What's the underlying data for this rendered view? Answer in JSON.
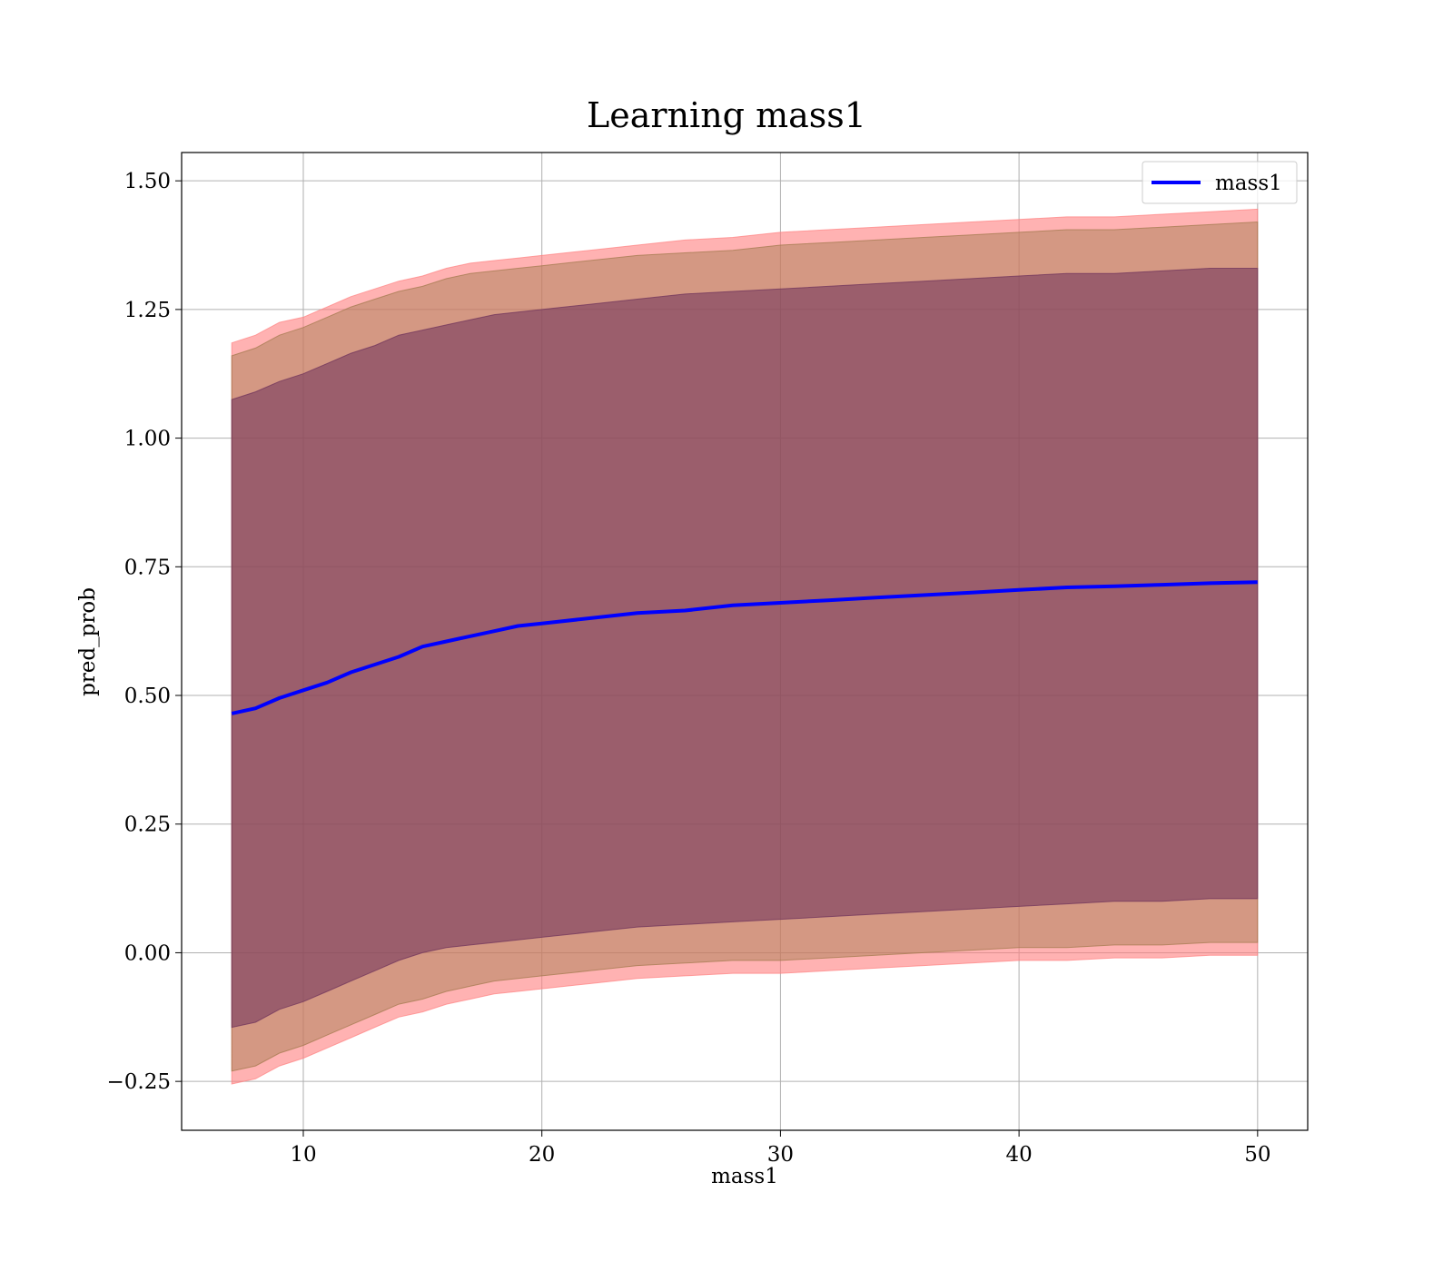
{
  "chart_data": {
    "type": "area",
    "title": "Learning mass1",
    "xlabel": "mass1",
    "ylabel": "pred_prob",
    "xlim": [
      4.9,
      52.1
    ],
    "ylim": [
      -0.345,
      1.555
    ],
    "xticks": [
      10,
      20,
      30,
      40,
      50
    ],
    "xtick_labels": [
      "10",
      "20",
      "30",
      "40",
      "50"
    ],
    "yticks": [
      -0.25,
      0.0,
      0.25,
      0.5,
      0.75,
      1.0,
      1.25,
      1.5
    ],
    "ytick_labels": [
      "−0.25",
      "0.00",
      "0.25",
      "0.50",
      "0.75",
      "1.00",
      "1.25",
      "1.50"
    ],
    "grid": true,
    "legend": {
      "position": "top-right",
      "entries": [
        {
          "label": "mass1",
          "color": "#0000ff"
        }
      ]
    },
    "x": [
      7,
      8,
      9,
      10,
      11,
      12,
      13,
      14,
      15,
      16,
      17,
      18,
      19,
      20,
      22,
      24,
      26,
      28,
      30,
      32,
      34,
      36,
      38,
      40,
      42,
      44,
      46,
      48,
      50
    ],
    "series": [
      {
        "name": "mass1",
        "kind": "line",
        "color": "#0000ff",
        "values": [
          0.465,
          0.475,
          0.495,
          0.51,
          0.525,
          0.545,
          0.56,
          0.575,
          0.595,
          0.605,
          0.615,
          0.625,
          0.635,
          0.64,
          0.65,
          0.66,
          0.665,
          0.675,
          0.68,
          0.685,
          0.69,
          0.695,
          0.7,
          0.705,
          0.71,
          0.712,
          0.715,
          0.718,
          0.72
        ]
      }
    ],
    "bands": [
      {
        "color": "#ff7f7f",
        "opacity": 0.6,
        "upper": [
          1.185,
          1.2,
          1.225,
          1.235,
          1.255,
          1.275,
          1.29,
          1.305,
          1.315,
          1.33,
          1.34,
          1.345,
          1.35,
          1.355,
          1.365,
          1.375,
          1.385,
          1.39,
          1.4,
          1.405,
          1.41,
          1.415,
          1.42,
          1.425,
          1.43,
          1.43,
          1.435,
          1.44,
          1.445
        ],
        "lower": [
          -0.255,
          -0.245,
          -0.22,
          -0.205,
          -0.185,
          -0.165,
          -0.145,
          -0.125,
          -0.115,
          -0.1,
          -0.09,
          -0.08,
          -0.075,
          -0.07,
          -0.06,
          -0.05,
          -0.045,
          -0.04,
          -0.04,
          -0.035,
          -0.03,
          -0.025,
          -0.02,
          -0.015,
          -0.015,
          -0.01,
          -0.01,
          -0.005,
          -0.005
        ]
      },
      {
        "color": "#a0784a",
        "opacity": 0.45,
        "upper": [
          1.16,
          1.175,
          1.2,
          1.215,
          1.235,
          1.255,
          1.27,
          1.285,
          1.295,
          1.31,
          1.32,
          1.325,
          1.33,
          1.335,
          1.345,
          1.355,
          1.36,
          1.365,
          1.375,
          1.38,
          1.385,
          1.39,
          1.395,
          1.4,
          1.405,
          1.405,
          1.41,
          1.415,
          1.42
        ],
        "lower": [
          -0.23,
          -0.22,
          -0.195,
          -0.18,
          -0.16,
          -0.14,
          -0.12,
          -0.1,
          -0.09,
          -0.075,
          -0.065,
          -0.055,
          -0.05,
          -0.045,
          -0.035,
          -0.025,
          -0.02,
          -0.015,
          -0.015,
          -0.01,
          -0.005,
          0.0,
          0.005,
          0.01,
          0.01,
          0.015,
          0.015,
          0.02,
          0.02
        ]
      },
      {
        "color": "#6b2f5a",
        "opacity": 0.55,
        "upper": [
          1.075,
          1.09,
          1.11,
          1.125,
          1.145,
          1.165,
          1.18,
          1.2,
          1.21,
          1.22,
          1.23,
          1.24,
          1.245,
          1.25,
          1.26,
          1.27,
          1.28,
          1.285,
          1.29,
          1.295,
          1.3,
          1.305,
          1.31,
          1.315,
          1.32,
          1.32,
          1.325,
          1.33,
          1.33
        ],
        "lower": [
          -0.145,
          -0.135,
          -0.11,
          -0.095,
          -0.075,
          -0.055,
          -0.035,
          -0.015,
          0.0,
          0.01,
          0.015,
          0.02,
          0.025,
          0.03,
          0.04,
          0.05,
          0.055,
          0.06,
          0.065,
          0.07,
          0.075,
          0.08,
          0.085,
          0.09,
          0.095,
          0.1,
          0.1,
          0.105,
          0.105
        ]
      }
    ]
  }
}
